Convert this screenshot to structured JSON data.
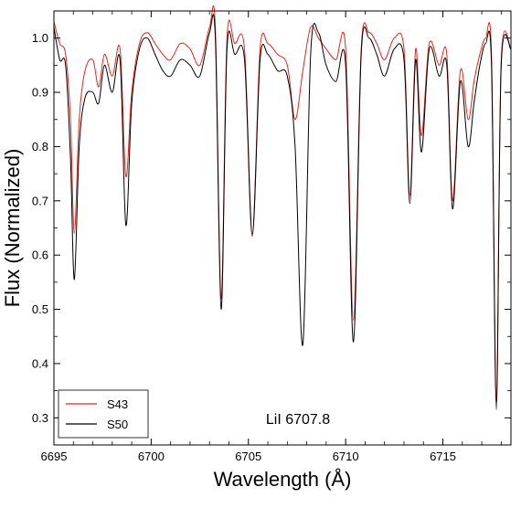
{
  "chart_data": {
    "type": "line",
    "title": "",
    "xlabel": "Wavelength (Å)",
    "ylabel": "Flux (Normalized)",
    "xlim": [
      6695,
      6718.5
    ],
    "ylim": [
      0.25,
      1.05
    ],
    "xticks": [
      6695,
      6700,
      6705,
      6710,
      6715
    ],
    "yticks": [
      0.3,
      0.4,
      0.5,
      0.6,
      0.7,
      0.8,
      0.9,
      1.0
    ],
    "xtick_labels": [
      "6695",
      "6700",
      "6705",
      "6710",
      "6715"
    ],
    "ytick_labels": [
      "0.3",
      "0.4",
      "0.5",
      "0.6",
      "0.7",
      "0.8",
      "0.9",
      "1.0"
    ],
    "grid": false,
    "legend": {
      "placement": "bottom-left",
      "entries": [
        "S43",
        "S50"
      ]
    },
    "annotations": [
      {
        "text": "LiI 6707.8"
      }
    ],
    "series": [
      {
        "name": "S43",
        "color": "#e8231c",
        "x": [
          6695.0,
          6695.3,
          6695.6,
          6695.85,
          6696.05,
          6696.3,
          6696.6,
          6697.0,
          6697.3,
          6697.6,
          6698.0,
          6698.4,
          6698.7,
          6699.0,
          6699.4,
          6699.8,
          6700.2,
          6700.6,
          6701.0,
          6701.5,
          6702.0,
          6702.5,
          6703.0,
          6703.3,
          6703.6,
          6703.9,
          6704.3,
          6704.8,
          6705.2,
          6705.6,
          6706.0,
          6706.5,
          6707.0,
          6707.4,
          6707.8,
          6708.2,
          6708.6,
          6709.0,
          6709.5,
          6710.0,
          6710.4,
          6710.8,
          6711.2,
          6711.6,
          6712.0,
          6712.5,
          6713.0,
          6713.3,
          6713.6,
          6713.9,
          6714.3,
          6714.8,
          6715.2,
          6715.5,
          6715.9,
          6716.3,
          6716.6,
          6716.9,
          6717.2,
          6717.5,
          6717.75,
          6718.0,
          6718.5
        ],
        "y": [
          1.03,
          0.99,
          0.97,
          0.85,
          0.64,
          0.85,
          0.94,
          0.96,
          0.91,
          0.97,
          0.93,
          0.98,
          0.745,
          0.9,
          0.99,
          1.01,
          0.99,
          0.97,
          0.96,
          0.99,
          0.98,
          0.95,
          1.02,
          1.02,
          0.52,
          1.0,
          0.99,
          0.98,
          0.64,
          0.98,
          0.99,
          0.97,
          0.95,
          0.85,
          0.94,
          1.02,
          1.0,
          0.98,
          0.96,
          0.98,
          0.48,
          0.98,
          1.01,
          0.99,
          0.96,
          1.0,
          0.98,
          0.71,
          0.98,
          0.82,
          0.99,
          0.95,
          0.97,
          0.7,
          0.94,
          0.85,
          0.92,
          0.97,
          1.0,
          0.97,
          0.33,
          0.96,
          0.98
        ]
      },
      {
        "name": "S50",
        "color": "#000000",
        "x": [
          6695.0,
          6695.3,
          6695.6,
          6695.85,
          6696.05,
          6696.3,
          6696.6,
          6697.0,
          6697.3,
          6697.6,
          6698.0,
          6698.4,
          6698.7,
          6699.0,
          6699.4,
          6699.8,
          6700.2,
          6700.6,
          6701.0,
          6701.5,
          6702.0,
          6702.5,
          6703.0,
          6703.3,
          6703.6,
          6703.9,
          6704.3,
          6704.8,
          6705.2,
          6705.6,
          6706.0,
          6706.5,
          6707.0,
          6707.4,
          6707.8,
          6708.2,
          6708.6,
          6709.0,
          6709.5,
          6710.0,
          6710.4,
          6710.8,
          6711.2,
          6711.6,
          6712.0,
          6712.5,
          6713.0,
          6713.3,
          6713.6,
          6713.9,
          6714.3,
          6714.8,
          6715.2,
          6715.5,
          6715.9,
          6716.3,
          6716.6,
          6716.9,
          6717.2,
          6717.5,
          6717.75,
          6718.0,
          6718.5
        ],
        "y": [
          1.02,
          0.96,
          0.95,
          0.78,
          0.555,
          0.8,
          0.89,
          0.9,
          0.88,
          0.95,
          0.9,
          0.96,
          0.655,
          0.88,
          0.98,
          1.0,
          0.97,
          0.94,
          0.93,
          0.96,
          0.95,
          0.93,
          1.01,
          1.0,
          0.5,
          0.98,
          0.97,
          0.96,
          0.635,
          0.96,
          0.97,
          0.94,
          0.93,
          0.8,
          0.435,
          0.97,
          1.01,
          0.95,
          0.92,
          0.95,
          0.44,
          0.97,
          1.0,
          0.97,
          0.93,
          0.98,
          0.96,
          0.695,
          0.96,
          0.79,
          0.98,
          0.93,
          0.95,
          0.685,
          0.92,
          0.8,
          0.88,
          0.95,
          0.99,
          0.95,
          0.315,
          0.95,
          0.98
        ]
      }
    ]
  }
}
